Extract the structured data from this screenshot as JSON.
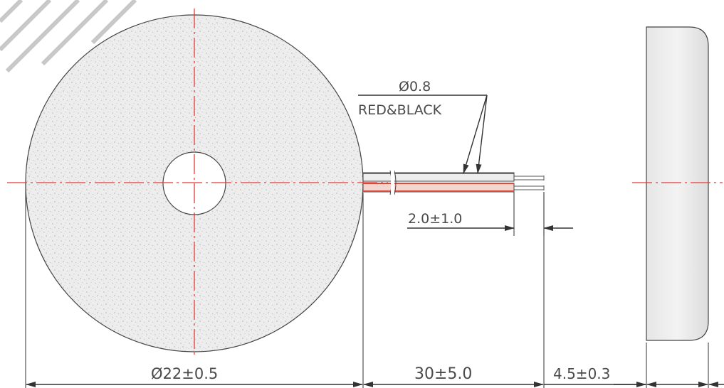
{
  "wire_spec": {
    "diameter": "Ø0.8",
    "colors": "RED&BLACK"
  },
  "dimensions": {
    "diameter": "Ø22±0.5",
    "lead_length": "30±5.0",
    "strip_length": "2.0±1.0",
    "thickness": "4.5±0.3"
  },
  "colors": {
    "centerline": "#e53b3b",
    "wire_red": "#d94a3c",
    "wire_black": "#555555",
    "body_fill": "#efefef"
  }
}
